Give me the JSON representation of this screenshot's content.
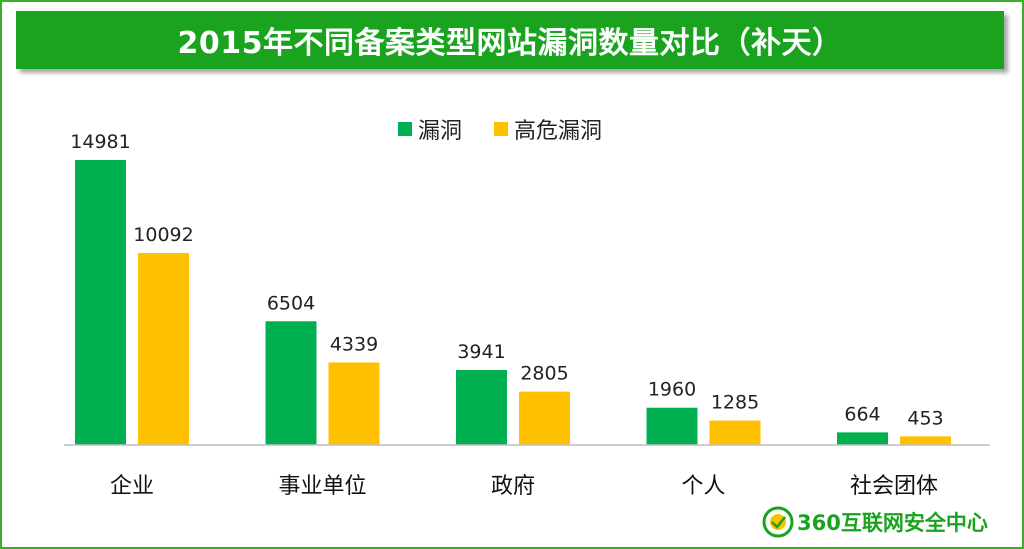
{
  "title": "2015年不同备案类型网站漏洞数量对比（补天）",
  "colors": {
    "accent": "#1aa31f",
    "series_primary": "#00b050",
    "series_secondary": "#ffc000"
  },
  "chart_data": {
    "type": "bar",
    "title": "2015年不同备案类型网站漏洞数量对比（补天）",
    "categories": [
      "企业",
      "事业单位",
      "政府",
      "个人",
      "社会团体"
    ],
    "series": [
      {
        "name": "漏洞",
        "color": "#00b050",
        "values": [
          14981,
          6504,
          3941,
          1960,
          664
        ]
      },
      {
        "name": "高危漏洞",
        "color": "#ffc000",
        "values": [
          10092,
          4339,
          2805,
          1285,
          453
        ]
      }
    ],
    "ylim": [
      0,
      16000
    ],
    "legend": "top-center",
    "grid": false,
    "xlabel": "",
    "ylabel": ""
  },
  "footer": {
    "logo_icon": "360-shield-icon",
    "brand_text": "360互联网安全中心"
  }
}
